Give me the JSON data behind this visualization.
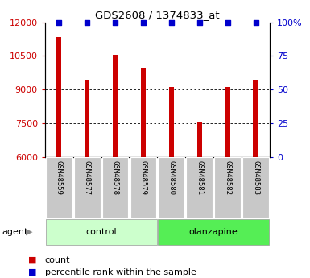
{
  "title": "GDS2608 / 1374833_at",
  "samples": [
    "GSM48559",
    "GSM48577",
    "GSM48578",
    "GSM48579",
    "GSM48580",
    "GSM48581",
    "GSM48582",
    "GSM48583"
  ],
  "counts": [
    11350,
    9450,
    10550,
    9950,
    9100,
    7550,
    9100,
    9450
  ],
  "percentiles": [
    100,
    100,
    100,
    100,
    100,
    100,
    100,
    100
  ],
  "group_info": [
    {
      "label": "control",
      "start": 0,
      "end": 3,
      "color": "#ccffcc"
    },
    {
      "label": "olanzapine",
      "start": 4,
      "end": 7,
      "color": "#55ee55"
    }
  ],
  "bar_color": "#cc0000",
  "percentile_color": "#0000cc",
  "ymin": 6000,
  "ymax": 12000,
  "yticks": [
    6000,
    7500,
    9000,
    10500,
    12000
  ],
  "right_yticks": [
    0,
    25,
    50,
    75,
    100
  ],
  "right_yticklabels": [
    "0",
    "25",
    "50",
    "75",
    "100%"
  ],
  "left_tick_color": "#cc0000",
  "right_tick_color": "#0000cc",
  "agent_label": "agent",
  "legend_count_label": "count",
  "legend_percentile_label": "percentile rank within the sample",
  "bar_width": 0.18,
  "cell_bg": "#c8c8c8",
  "figsize": [
    3.85,
    3.45
  ],
  "dpi": 100
}
